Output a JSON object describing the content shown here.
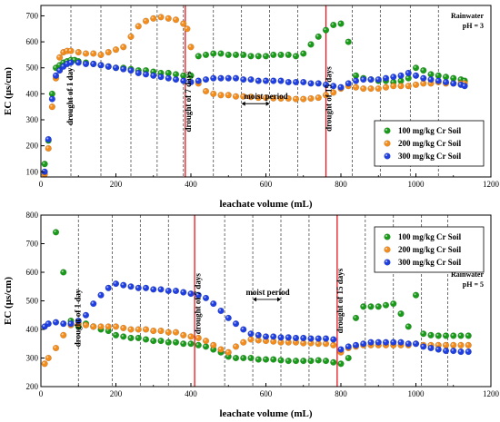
{
  "colors": {
    "series": [
      "#1a9a1a",
      "#f28c1c",
      "#1f3fe0"
    ],
    "drought_line": "#e8141e",
    "dashed_line": "#333333"
  },
  "chart_data": [
    {
      "type": "scatter",
      "xlabel": "leachate volume (mL)",
      "ylabel": "EC (μs/cm)",
      "xlim": [
        0,
        1200
      ],
      "ylim": [
        80,
        740
      ],
      "x_ticks": [
        0,
        200,
        400,
        600,
        800,
        1000,
        1200
      ],
      "y_ticks": [
        100,
        200,
        300,
        400,
        500,
        600,
        700
      ],
      "legend_position": "bottom-right",
      "corner_text": [
        "Rainwater",
        "pH = 3"
      ],
      "dashed_lines_x": [
        80,
        160,
        240,
        310,
        380,
        460,
        535,
        610,
        685,
        760,
        830,
        905,
        985,
        1060
      ],
      "drought_lines_x": [
        385,
        760
      ],
      "annotations": [
        {
          "text": "drought of 1 day",
          "x": 85,
          "y": 390
        },
        {
          "text": "drought of 7 days",
          "x": 400,
          "y": 370
        },
        {
          "text": "drought of 15 days",
          "x": 775,
          "y": 380
        },
        {
          "text": "moist period",
          "x": 600,
          "y": 380
        }
      ],
      "moist_arrow": {
        "x_start": 535,
        "x_end": 610,
        "y": 362
      },
      "series": [
        {
          "name": "100 mg/kg Cr Soil",
          "x": [
            10,
            20,
            30,
            40,
            50,
            60,
            70,
            80,
            90,
            100,
            120,
            140,
            160,
            180,
            200,
            220,
            240,
            260,
            280,
            300,
            320,
            340,
            360,
            380,
            400,
            420,
            440,
            460,
            480,
            500,
            520,
            540,
            560,
            580,
            600,
            620,
            640,
            660,
            680,
            700,
            720,
            740,
            760,
            780,
            800,
            820,
            840,
            860,
            880,
            900,
            920,
            940,
            960,
            980,
            1000,
            1020,
            1040,
            1060,
            1080,
            1100,
            1120,
            1130
          ],
          "y": [
            130,
            220,
            400,
            500,
            510,
            520,
            525,
            530,
            530,
            525,
            520,
            515,
            510,
            505,
            500,
            500,
            495,
            490,
            490,
            485,
            480,
            480,
            475,
            470,
            470,
            545,
            550,
            555,
            555,
            550,
            550,
            550,
            545,
            545,
            545,
            550,
            550,
            550,
            545,
            555,
            590,
            620,
            645,
            665,
            670,
            600,
            470,
            460,
            455,
            450,
            450,
            445,
            450,
            460,
            500,
            490,
            475,
            470,
            465,
            460,
            455,
            450
          ]
        },
        {
          "name": "200 mg/kg Cr Soil",
          "x": [
            10,
            20,
            30,
            40,
            50,
            60,
            70,
            80,
            100,
            120,
            140,
            160,
            180,
            200,
            220,
            240,
            260,
            280,
            300,
            320,
            340,
            360,
            380,
            390,
            400,
            420,
            440,
            460,
            480,
            500,
            520,
            540,
            560,
            580,
            600,
            620,
            640,
            660,
            680,
            700,
            720,
            740,
            760,
            780,
            800,
            820,
            840,
            860,
            880,
            900,
            920,
            940,
            960,
            980,
            1000,
            1020,
            1040,
            1060,
            1080,
            1100,
            1120,
            1130
          ],
          "y": [
            90,
            190,
            350,
            460,
            540,
            560,
            565,
            565,
            560,
            555,
            555,
            550,
            560,
            570,
            580,
            620,
            660,
            680,
            690,
            695,
            690,
            685,
            670,
            650,
            580,
            440,
            410,
            400,
            395,
            395,
            390,
            390,
            388,
            385,
            385,
            383,
            382,
            382,
            380,
            380,
            382,
            385,
            395,
            405,
            420,
            430,
            425,
            420,
            420,
            420,
            425,
            430,
            430,
            430,
            435,
            440,
            440,
            445,
            440,
            440,
            440,
            440
          ]
        },
        {
          "name": "300 mg/kg Cr Soil",
          "x": [
            10,
            20,
            30,
            40,
            50,
            60,
            70,
            80,
            100,
            120,
            140,
            160,
            180,
            200,
            220,
            240,
            260,
            280,
            300,
            320,
            340,
            360,
            380,
            400,
            420,
            440,
            460,
            480,
            500,
            520,
            540,
            560,
            580,
            600,
            620,
            640,
            660,
            680,
            700,
            720,
            740,
            760,
            780,
            800,
            820,
            840,
            860,
            880,
            900,
            920,
            940,
            960,
            980,
            1000,
            1020,
            1040,
            1060,
            1080,
            1100,
            1120,
            1130
          ],
          "y": [
            100,
            225,
            380,
            470,
            490,
            505,
            515,
            520,
            520,
            515,
            515,
            510,
            505,
            500,
            495,
            490,
            480,
            475,
            470,
            465,
            460,
            455,
            450,
            445,
            450,
            455,
            460,
            460,
            460,
            460,
            455,
            455,
            450,
            450,
            450,
            450,
            445,
            445,
            445,
            440,
            440,
            435,
            430,
            425,
            440,
            450,
            455,
            455,
            455,
            460,
            465,
            470,
            480,
            470,
            460,
            455,
            450,
            445,
            440,
            435,
            430
          ]
        }
      ]
    },
    {
      "type": "scatter",
      "xlabel": "leachate volume (mL)",
      "ylabel": "EC (μs/cm)",
      "xlim": [
        0,
        1200
      ],
      "ylim": [
        200,
        800
      ],
      "x_ticks": [
        0,
        200,
        400,
        600,
        800,
        1000,
        1200
      ],
      "y_ticks": [
        200,
        300,
        400,
        500,
        600,
        700,
        800
      ],
      "legend_position": "top-right",
      "corner_text": [
        "Rainwater",
        "pH = 5"
      ],
      "dashed_lines_x": [
        100,
        190,
        265,
        340,
        410,
        490,
        565,
        640,
        715,
        790,
        865,
        940,
        1015,
        1085
      ],
      "drought_lines_x": [
        410,
        790
      ],
      "annotations": [
        {
          "text": "drought of 1 day",
          "x": 105,
          "y": 440
        },
        {
          "text": "drought of 7 days",
          "x": 425,
          "y": 490
        },
        {
          "text": "drought of 15 days",
          "x": 805,
          "y": 500
        },
        {
          "text": "moist period",
          "x": 605,
          "y": 520
        }
      ],
      "moist_arrow": {
        "x_start": 565,
        "x_end": 640,
        "y": 505
      },
      "series": [
        {
          "name": "100 mg/kg Cr Soil",
          "x": [
            40,
            60,
            80,
            100,
            120,
            140,
            160,
            180,
            200,
            220,
            240,
            260,
            280,
            300,
            320,
            340,
            360,
            380,
            400,
            420,
            440,
            460,
            480,
            500,
            520,
            540,
            560,
            580,
            600,
            620,
            640,
            660,
            680,
            700,
            720,
            740,
            760,
            780,
            800,
            820,
            840,
            860,
            880,
            900,
            920,
            940,
            960,
            980,
            1000,
            1020,
            1040,
            1060,
            1080,
            1100,
            1120,
            1140
          ],
          "y": [
            740,
            600,
            430,
            410,
            420,
            410,
            400,
            395,
            380,
            375,
            370,
            370,
            365,
            360,
            360,
            355,
            355,
            350,
            350,
            345,
            340,
            330,
            320,
            305,
            300,
            300,
            300,
            295,
            295,
            295,
            292,
            290,
            290,
            290,
            290,
            292,
            290,
            285,
            280,
            300,
            440,
            480,
            480,
            480,
            485,
            490,
            455,
            410,
            520,
            385,
            380,
            378,
            378,
            378,
            378,
            378
          ]
        },
        {
          "name": "200 mg/kg Cr Soil",
          "x": [
            10,
            20,
            40,
            60,
            80,
            100,
            120,
            140,
            160,
            180,
            200,
            220,
            240,
            260,
            280,
            300,
            320,
            340,
            360,
            380,
            400,
            420,
            440,
            460,
            480,
            500,
            520,
            540,
            560,
            580,
            600,
            620,
            640,
            660,
            680,
            700,
            720,
            740,
            760,
            780,
            800,
            820,
            840,
            860,
            880,
            900,
            920,
            940,
            960,
            980,
            1000,
            1020,
            1040,
            1060,
            1080,
            1100,
            1120,
            1140
          ],
          "y": [
            280,
            300,
            335,
            380,
            415,
            420,
            415,
            410,
            410,
            410,
            410,
            405,
            400,
            400,
            400,
            395,
            395,
            390,
            390,
            380,
            375,
            370,
            360,
            345,
            330,
            320,
            340,
            355,
            365,
            362,
            360,
            358,
            355,
            355,
            355,
            352,
            352,
            350,
            350,
            345,
            320,
            335,
            340,
            345,
            345,
            345,
            345,
            345,
            345,
            345,
            350,
            345,
            345,
            345,
            345,
            345,
            345,
            345
          ]
        },
        {
          "name": "300 mg/kg Cr Soil",
          "x": [
            10,
            20,
            40,
            60,
            80,
            100,
            120,
            140,
            160,
            180,
            200,
            220,
            240,
            260,
            280,
            300,
            320,
            340,
            360,
            380,
            400,
            420,
            440,
            460,
            480,
            500,
            520,
            540,
            560,
            580,
            600,
            620,
            640,
            660,
            680,
            700,
            720,
            740,
            760,
            780,
            800,
            820,
            840,
            860,
            880,
            900,
            920,
            940,
            960,
            980,
            1000,
            1020,
            1040,
            1060,
            1080,
            1100,
            1120,
            1140
          ],
          "y": [
            410,
            420,
            425,
            420,
            420,
            430,
            450,
            490,
            520,
            545,
            560,
            555,
            550,
            545,
            545,
            540,
            540,
            535,
            535,
            530,
            525,
            520,
            510,
            490,
            465,
            440,
            420,
            400,
            385,
            380,
            375,
            375,
            372,
            372,
            370,
            370,
            368,
            368,
            368,
            365,
            330,
            340,
            345,
            350,
            355,
            355,
            355,
            355,
            355,
            350,
            350,
            340,
            335,
            330,
            325,
            325,
            322,
            322
          ]
        }
      ]
    }
  ]
}
